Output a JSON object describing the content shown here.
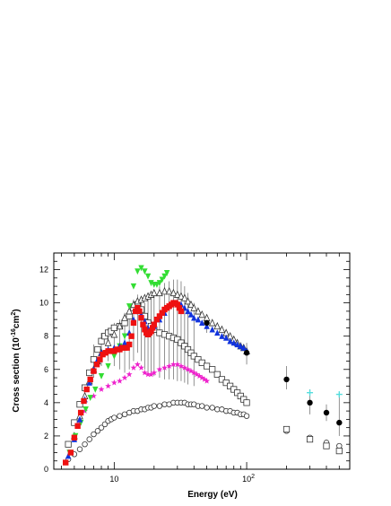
{
  "chart_data": {
    "type": "scatter",
    "title": "",
    "xlabel": "Energy (eV)",
    "ylabel_main": "Cross section (10",
    "ylabel_exp": "-16",
    "ylabel_unit": "cm",
    "ylabel_unit_exp": "2",
    "ylabel_close": ")",
    "x_scale": "log",
    "xlim": [
      3.5,
      600
    ],
    "ylim": [
      0,
      13
    ],
    "y_ticks": [
      0,
      2,
      4,
      6,
      8,
      10,
      12
    ],
    "x_tick_labels": [
      {
        "value": 10,
        "base": "10",
        "exp": ""
      },
      {
        "value": 100,
        "base": "10",
        "exp": "2"
      }
    ],
    "legend": "none",
    "grid": false,
    "colors": {
      "red_squares": "#ee1111",
      "blue_triangles": "#1133dd",
      "green_down_triangles": "#33dd33",
      "magenta_stars": "#ee22cc",
      "open_symbols": "#333333",
      "black_dots": "#000000",
      "cyan_crosses": "#55dddd",
      "error_bars": "#777777"
    },
    "series": [
      {
        "marker": "filled-square",
        "color": "#ee1111",
        "x": [
          4.3,
          4.7,
          5.0,
          5.3,
          5.6,
          5.9,
          6.2,
          6.6,
          7.0,
          7.4,
          7.8,
          8.2,
          8.6,
          9.0,
          9.5,
          10.0,
          10.5,
          11.0,
          11.5,
          12.0,
          12.5,
          13.0,
          13.5,
          14.0,
          14.5,
          15.0,
          15.5,
          16.0,
          16.5,
          17.0,
          17.5,
          18.0,
          18.5,
          19.0,
          19.5,
          20.0,
          21.0,
          22.0,
          23.0,
          24.0,
          25.0,
          26.0,
          27.0,
          28.0,
          29.0,
          30.0,
          31.0,
          32.0
        ],
        "y": [
          0.4,
          1.0,
          1.9,
          2.6,
          3.4,
          4.1,
          4.8,
          5.4,
          5.9,
          6.3,
          6.6,
          6.9,
          7.0,
          7.1,
          7.1,
          7.1,
          7.2,
          7.2,
          7.3,
          7.3,
          7.3,
          7.5,
          8.0,
          8.8,
          9.5,
          9.7,
          9.5,
          9.1,
          8.7,
          8.4,
          8.2,
          8.1,
          8.2,
          8.3,
          8.5,
          8.7,
          9.0,
          9.2,
          9.4,
          9.6,
          9.7,
          9.8,
          9.9,
          10.0,
          10.0,
          9.9,
          9.7,
          9.5
        ]
      },
      {
        "marker": "filled-triangle-up",
        "color": "#1133dd",
        "x": [
          4.5,
          5.0,
          5.5,
          6.0,
          6.5,
          7.0,
          7.5,
          8.0,
          9.0,
          10.0,
          11.0,
          12.0,
          13.0,
          14.0,
          15.0,
          16.0,
          17.0,
          18.0,
          19.0,
          20.0,
          22.0,
          24.0,
          26.0,
          28.0,
          30.0,
          32.0,
          34.0,
          36.0,
          38.0,
          40.0,
          43.0,
          46.0,
          50.0,
          55.0,
          60.0,
          65.0,
          70.0,
          75.0,
          80.0,
          85.0,
          90.0,
          95.0,
          100.0
        ],
        "y": [
          0.8,
          1.8,
          3.0,
          4.2,
          5.2,
          6.0,
          6.6,
          7.0,
          7.2,
          7.3,
          7.4,
          7.6,
          8.2,
          9.0,
          9.5,
          9.3,
          8.9,
          8.5,
          8.5,
          8.6,
          9.0,
          9.4,
          9.8,
          10.0,
          10.0,
          9.9,
          9.7,
          9.5,
          9.3,
          9.1,
          9.0,
          8.8,
          8.6,
          8.4,
          8.2,
          8.0,
          7.9,
          7.7,
          7.6,
          7.5,
          7.4,
          7.3,
          7.1
        ]
      },
      {
        "marker": "filled-triangle-down",
        "color": "#33dd33",
        "x": [
          4.6,
          5.1,
          5.6,
          6.1,
          6.6,
          7.2,
          8.0,
          9.0,
          10.0,
          11.0,
          12.0,
          13.0,
          14.0,
          15.0,
          16.0,
          17.0,
          18.0,
          19.0,
          20.0,
          21.0,
          22.0,
          23.0,
          24.0,
          25.0
        ],
        "y": [
          1.0,
          2.0,
          2.8,
          3.6,
          4.3,
          4.8,
          5.6,
          6.2,
          6.8,
          7.4,
          8.0,
          9.8,
          11.0,
          11.9,
          12.1,
          11.9,
          11.6,
          11.2,
          11.1,
          11.1,
          11.2,
          11.4,
          11.6,
          11.8
        ]
      },
      {
        "marker": "star",
        "color": "#ee22cc",
        "x": [
          5.0,
          5.5,
          6.0,
          7.0,
          8.0,
          9.0,
          10.0,
          11.0,
          12.0,
          13.0,
          14.0,
          15.0,
          16.0,
          17.0,
          18.0,
          19.0,
          20.0,
          22.0,
          24.0,
          26.0,
          28.0,
          30.0,
          32.0,
          34.0,
          36.0,
          38.0,
          40.0,
          42.0,
          44.0,
          46.0,
          48.0,
          50.0
        ],
        "y": [
          1.8,
          2.8,
          3.5,
          4.4,
          4.8,
          5.0,
          5.2,
          5.3,
          5.5,
          5.7,
          6.1,
          6.3,
          6.1,
          5.8,
          5.7,
          5.7,
          5.8,
          6.0,
          6.1,
          6.2,
          6.3,
          6.3,
          6.2,
          6.1,
          6.0,
          5.9,
          5.8,
          5.7,
          5.6,
          5.5,
          5.4,
          5.3
        ]
      },
      {
        "marker": "open-square",
        "color": "#333333",
        "x": [
          4.5,
          5.0,
          5.5,
          6.0,
          6.5,
          7.0,
          7.5,
          8.0,
          8.5,
          9.0,
          9.5,
          10.0,
          11.0,
          12.0,
          13.0,
          14.0,
          15.0,
          16.0,
          17.0,
          18.0,
          19.0,
          20.0,
          22.0,
          24.0,
          26.0,
          28.0,
          30.0,
          32.0,
          34.0,
          36.0,
          38.0,
          40.0,
          43.0,
          46.0,
          50.0,
          55.0,
          60.0,
          65.0,
          70.0,
          75.0,
          80.0,
          85.0,
          90.0,
          95.0,
          100.0,
          200.0,
          300.0,
          400.0,
          500.0
        ],
        "y": [
          1.5,
          2.8,
          3.9,
          4.9,
          5.8,
          6.6,
          7.2,
          7.7,
          8.0,
          8.2,
          8.3,
          8.5,
          8.6,
          8.8,
          9.2,
          9.7,
          9.9,
          9.6,
          9.2,
          8.8,
          8.6,
          8.4,
          8.2,
          8.1,
          8.0,
          7.9,
          7.8,
          7.6,
          7.4,
          7.2,
          7.0,
          6.8,
          6.6,
          6.4,
          6.2,
          6.0,
          5.7,
          5.4,
          5.2,
          5.0,
          4.8,
          4.6,
          4.4,
          4.2,
          4.0,
          2.4,
          1.8,
          1.4,
          1.1
        ]
      },
      {
        "marker": "open-triangle-up",
        "color": "#333333",
        "x": [
          5.0,
          5.5,
          6.0,
          6.5,
          7.0,
          7.5,
          8.0,
          9.0,
          10.0,
          11.0,
          12.0,
          13.0,
          14.0,
          15.0,
          16.0,
          17.0,
          18.0,
          19.0,
          20.0,
          22.0,
          24.0,
          26.0,
          28.0,
          30.0,
          32.0,
          34.0,
          36.0,
          38.0,
          40.0,
          43.0,
          46.0,
          50.0,
          55.0,
          60.0,
          65.0,
          70.0,
          75.0,
          80.0,
          85.0,
          90.0,
          95.0,
          100.0
        ],
        "y": [
          2.0,
          3.2,
          4.4,
          5.3,
          6.0,
          6.5,
          7.0,
          7.6,
          8.1,
          8.6,
          9.1,
          9.5,
          9.9,
          10.1,
          10.2,
          10.3,
          10.4,
          10.5,
          10.6,
          10.6,
          10.7,
          10.7,
          10.6,
          10.5,
          10.4,
          10.3,
          10.1,
          9.9,
          9.7,
          9.5,
          9.3,
          9.1,
          8.8,
          8.6,
          8.4,
          8.2,
          8.0,
          7.8,
          7.6,
          7.4,
          7.3,
          7.1
        ]
      },
      {
        "marker": "open-circle",
        "color": "#333333",
        "x": [
          4.5,
          5.0,
          5.5,
          6.0,
          6.5,
          7.0,
          7.5,
          8.0,
          8.5,
          9.0,
          9.5,
          10.0,
          11.0,
          12.0,
          13.0,
          14.0,
          15.0,
          16.0,
          17.0,
          18.0,
          19.0,
          20.0,
          22.0,
          24.0,
          26.0,
          28.0,
          30.0,
          32.0,
          34.0,
          36.0,
          38.0,
          40.0,
          43.0,
          46.0,
          50.0,
          55.0,
          60.0,
          65.0,
          70.0,
          75.0,
          80.0,
          85.0,
          90.0,
          95.0,
          100.0,
          200.0,
          300.0,
          400.0,
          500.0
        ],
        "y": [
          0.6,
          0.9,
          1.2,
          1.5,
          1.8,
          2.1,
          2.3,
          2.5,
          2.7,
          2.9,
          3.0,
          3.1,
          3.2,
          3.3,
          3.4,
          3.5,
          3.5,
          3.6,
          3.6,
          3.7,
          3.7,
          3.8,
          3.8,
          3.9,
          3.9,
          4.0,
          4.0,
          4.0,
          4.0,
          3.9,
          3.9,
          3.9,
          3.8,
          3.8,
          3.7,
          3.7,
          3.6,
          3.6,
          3.5,
          3.5,
          3.4,
          3.4,
          3.3,
          3.3,
          3.2,
          2.3,
          1.9,
          1.6,
          1.4
        ]
      },
      {
        "marker": "filled-circle",
        "color": "#000000",
        "x": [
          50.0,
          100.0,
          200.0,
          300.0,
          400.0,
          500.0
        ],
        "y": [
          8.8,
          7.0,
          5.4,
          4.0,
          3.4,
          2.8
        ]
      },
      {
        "marker": "cross",
        "color": "#55dddd",
        "x": [
          300.0,
          500.0
        ],
        "y": [
          4.6,
          4.5
        ]
      }
    ],
    "error_bars": [
      {
        "x": 7.0,
        "low": 5.5,
        "high": 7.5
      },
      {
        "x": 8.0,
        "low": 6.2,
        "high": 8.2
      },
      {
        "x": 9.0,
        "low": 6.5,
        "high": 8.5
      },
      {
        "x": 10.0,
        "low": 6.2,
        "high": 8.8
      },
      {
        "x": 11.0,
        "low": 6.0,
        "high": 9.0
      },
      {
        "x": 12.0,
        "low": 5.8,
        "high": 9.4
      },
      {
        "x": 13.0,
        "low": 6.0,
        "high": 9.8
      },
      {
        "x": 14.0,
        "low": 6.5,
        "high": 10.2
      },
      {
        "x": 15.0,
        "low": 7.0,
        "high": 10.5
      },
      {
        "x": 16.0,
        "low": 6.5,
        "high": 10.2
      },
      {
        "x": 17.0,
        "low": 6.0,
        "high": 10.0
      },
      {
        "x": 18.0,
        "low": 5.8,
        "high": 10.2
      },
      {
        "x": 19.0,
        "low": 5.6,
        "high": 10.5
      },
      {
        "x": 20.0,
        "low": 5.6,
        "high": 10.8
      },
      {
        "x": 22.0,
        "low": 5.5,
        "high": 11.0
      },
      {
        "x": 24.0,
        "low": 5.4,
        "high": 11.2
      },
      {
        "x": 26.0,
        "low": 5.4,
        "high": 11.3
      },
      {
        "x": 28.0,
        "low": 5.4,
        "high": 11.4
      },
      {
        "x": 30.0,
        "low": 5.3,
        "high": 11.4
      },
      {
        "x": 32.0,
        "low": 5.3,
        "high": 11.3
      },
      {
        "x": 34.0,
        "low": 5.2,
        "high": 11.0
      },
      {
        "x": 36.0,
        "low": 5.1,
        "high": 10.6
      },
      {
        "x": 40.0,
        "low": 5.0,
        "high": 10.0
      },
      {
        "x": 50.0,
        "low": 8.2,
        "high": 9.3
      },
      {
        "x": 100.0,
        "low": 6.3,
        "high": 7.6
      },
      {
        "x": 200.0,
        "low": 4.8,
        "high": 6.2
      },
      {
        "x": 300.0,
        "low": 3.3,
        "high": 4.8
      },
      {
        "x": 400.0,
        "low": 2.9,
        "high": 3.9
      },
      {
        "x": 500.0,
        "low": 2.0,
        "high": 4.5
      }
    ]
  }
}
